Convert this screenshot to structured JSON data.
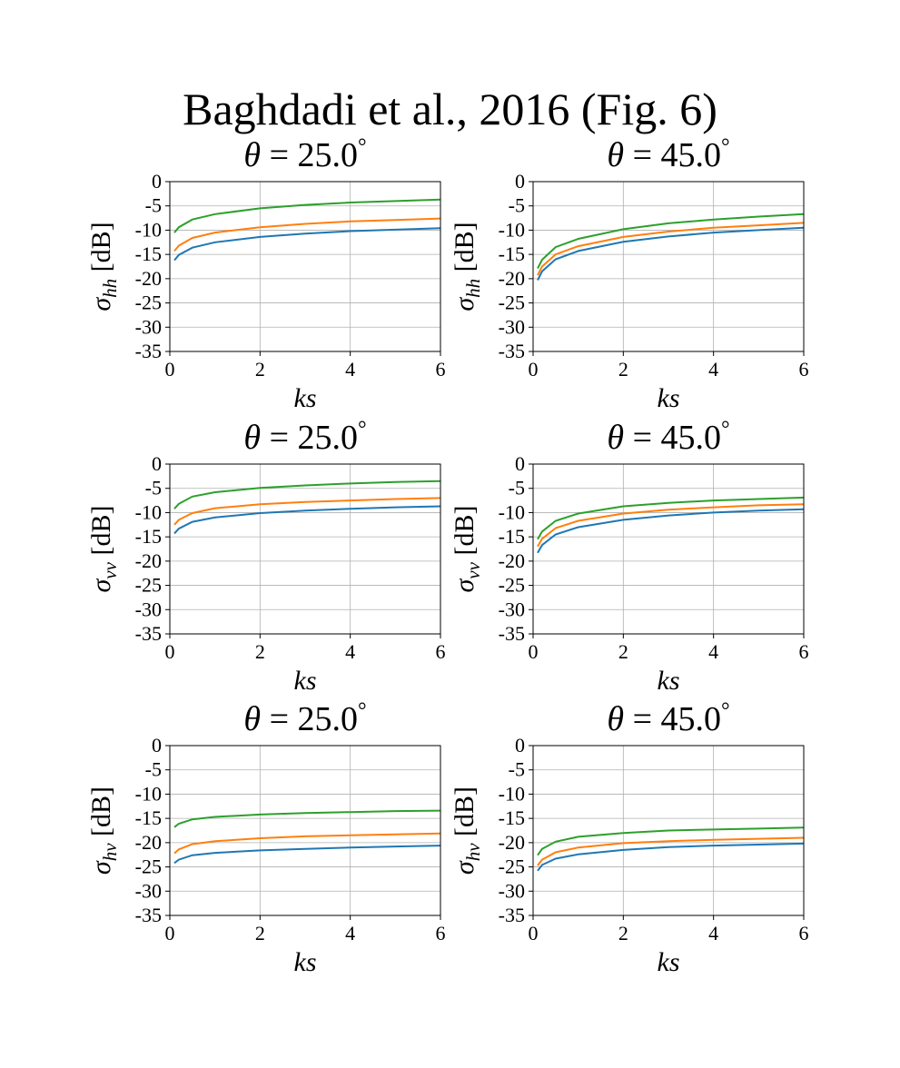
{
  "figure": {
    "title": "Baghdadi et al., 2016 (Fig. 6)"
  },
  "chart_data": [
    {
      "type": "line",
      "title": "θ = 25.0°",
      "xlabel": "ks",
      "ylabel": "σhh [dB]",
      "title_parts": {
        "var": "θ",
        "eq": " = ",
        "value": "25.0",
        "unit": "°"
      },
      "ylabel_parts": {
        "sym": "σ",
        "sub": "hh",
        "unit": " [dB]"
      },
      "xlim": [
        0,
        6
      ],
      "ylim": [
        -35,
        0
      ],
      "xticks": [
        "0",
        "2",
        "4",
        "6"
      ],
      "yticks": [
        "0",
        "-5",
        "-10",
        "-15",
        "-20",
        "-25",
        "-30",
        "-35"
      ],
      "grid": true,
      "x": [
        0.1,
        0.2,
        0.5,
        1,
        2,
        3,
        4,
        5,
        6
      ],
      "series": [
        {
          "color": "#1f77b4",
          "values": [
            -16.2,
            -15.1,
            -13.6,
            -12.5,
            -11.4,
            -10.7,
            -10.2,
            -9.9,
            -9.6
          ]
        },
        {
          "color": "#ff7f0e",
          "values": [
            -14.3,
            -13.2,
            -11.6,
            -10.5,
            -9.4,
            -8.7,
            -8.2,
            -7.9,
            -7.6
          ]
        },
        {
          "color": "#2ca02c",
          "values": [
            -10.5,
            -9.4,
            -7.8,
            -6.7,
            -5.5,
            -4.8,
            -4.3,
            -4.0,
            -3.7
          ]
        }
      ]
    },
    {
      "type": "line",
      "title": "θ = 45.0°",
      "xlabel": "ks",
      "ylabel": "σhh [dB]",
      "title_parts": {
        "var": "θ",
        "eq": " = ",
        "value": "45.0",
        "unit": "°"
      },
      "ylabel_parts": {
        "sym": "σ",
        "sub": "hh",
        "unit": " [dB]"
      },
      "xlim": [
        0,
        6
      ],
      "ylim": [
        -35,
        0
      ],
      "xticks": [
        "0",
        "2",
        "4",
        "6"
      ],
      "yticks": [
        "0",
        "-5",
        "-10",
        "-15",
        "-20",
        "-25",
        "-30",
        "-35"
      ],
      "grid": true,
      "x": [
        0.1,
        0.2,
        0.5,
        1,
        2,
        3,
        4,
        5,
        6
      ],
      "series": [
        {
          "color": "#1f77b4",
          "values": [
            -20.3,
            -18.5,
            -16.0,
            -14.3,
            -12.4,
            -11.3,
            -10.5,
            -10.0,
            -9.5
          ]
        },
        {
          "color": "#ff7f0e",
          "values": [
            -19.3,
            -17.5,
            -15.0,
            -13.3,
            -11.4,
            -10.3,
            -9.5,
            -9.0,
            -8.5
          ]
        },
        {
          "color": "#2ca02c",
          "values": [
            -17.9,
            -16.1,
            -13.5,
            -11.8,
            -9.8,
            -8.6,
            -7.8,
            -7.2,
            -6.7
          ]
        }
      ]
    },
    {
      "type": "line",
      "title": "θ = 25.0°",
      "xlabel": "ks",
      "ylabel": "σvv [dB]",
      "title_parts": {
        "var": "θ",
        "eq": " = ",
        "value": "25.0",
        "unit": "°"
      },
      "ylabel_parts": {
        "sym": "σ",
        "sub": "vv",
        "unit": " [dB]"
      },
      "xlim": [
        0,
        6
      ],
      "ylim": [
        -35,
        0
      ],
      "xticks": [
        "0",
        "2",
        "4",
        "6"
      ],
      "yticks": [
        "0",
        "-5",
        "-10",
        "-15",
        "-20",
        "-25",
        "-30",
        "-35"
      ],
      "grid": true,
      "x": [
        0.1,
        0.2,
        0.5,
        1,
        2,
        3,
        4,
        5,
        6
      ],
      "series": [
        {
          "color": "#1f77b4",
          "values": [
            -14.3,
            -13.3,
            -11.9,
            -11.0,
            -10.1,
            -9.6,
            -9.2,
            -8.9,
            -8.7
          ]
        },
        {
          "color": "#ff7f0e",
          "values": [
            -12.5,
            -11.5,
            -10.1,
            -9.1,
            -8.3,
            -7.8,
            -7.5,
            -7.2,
            -7.0
          ]
        },
        {
          "color": "#2ca02c",
          "values": [
            -9.2,
            -8.2,
            -6.7,
            -5.8,
            -4.9,
            -4.4,
            -4.0,
            -3.7,
            -3.5
          ]
        }
      ]
    },
    {
      "type": "line",
      "title": "θ = 45.0°",
      "xlabel": "ks",
      "ylabel": "σvv [dB]",
      "title_parts": {
        "var": "θ",
        "eq": " = ",
        "value": "45.0",
        "unit": "°"
      },
      "ylabel_parts": {
        "sym": "σ",
        "sub": "vv",
        "unit": " [dB]"
      },
      "xlim": [
        0,
        6
      ],
      "ylim": [
        -35,
        0
      ],
      "xticks": [
        "0",
        "2",
        "4",
        "6"
      ],
      "yticks": [
        "0",
        "-5",
        "-10",
        "-15",
        "-20",
        "-25",
        "-30",
        "-35"
      ],
      "grid": true,
      "x": [
        0.1,
        0.2,
        0.5,
        1,
        2,
        3,
        4,
        5,
        6
      ],
      "series": [
        {
          "color": "#1f77b4",
          "values": [
            -18.3,
            -16.7,
            -14.5,
            -13.0,
            -11.5,
            -10.6,
            -10.0,
            -9.6,
            -9.3
          ]
        },
        {
          "color": "#ff7f0e",
          "values": [
            -17.0,
            -15.4,
            -13.2,
            -11.7,
            -10.2,
            -9.4,
            -8.9,
            -8.5,
            -8.3
          ]
        },
        {
          "color": "#2ca02c",
          "values": [
            -15.5,
            -13.9,
            -11.7,
            -10.2,
            -8.7,
            -8.0,
            -7.5,
            -7.2,
            -6.9
          ]
        }
      ]
    },
    {
      "type": "line",
      "title": "θ = 25.0°",
      "xlabel": "ks",
      "ylabel": "σhv [dB]",
      "title_parts": {
        "var": "θ",
        "eq": " = ",
        "value": "25.0",
        "unit": "°"
      },
      "ylabel_parts": {
        "sym": "σ",
        "sub": "hv",
        "unit": " [dB]"
      },
      "xlim": [
        0,
        6
      ],
      "ylim": [
        -35,
        0
      ],
      "xticks": [
        "0",
        "2",
        "4",
        "6"
      ],
      "yticks": [
        "0",
        "-5",
        "-10",
        "-15",
        "-20",
        "-25",
        "-30",
        "-35"
      ],
      "grid": true,
      "x": [
        0.1,
        0.2,
        0.5,
        1,
        2,
        3,
        4,
        5,
        6
      ],
      "series": [
        {
          "color": "#1f77b4",
          "values": [
            -24.2,
            -23.5,
            -22.6,
            -22.1,
            -21.6,
            -21.3,
            -21.0,
            -20.8,
            -20.6
          ]
        },
        {
          "color": "#ff7f0e",
          "values": [
            -22.2,
            -21.4,
            -20.3,
            -19.7,
            -19.1,
            -18.7,
            -18.5,
            -18.3,
            -18.1
          ]
        },
        {
          "color": "#2ca02c",
          "values": [
            -16.8,
            -16.1,
            -15.2,
            -14.7,
            -14.2,
            -13.9,
            -13.7,
            -13.5,
            -13.4
          ]
        }
      ]
    },
    {
      "type": "line",
      "title": "θ = 45.0°",
      "xlabel": "ks",
      "ylabel": "σhv [dB]",
      "title_parts": {
        "var": "θ",
        "eq": " = ",
        "value": "45.0",
        "unit": "°"
      },
      "ylabel_parts": {
        "sym": "σ",
        "sub": "hv",
        "unit": " [dB]"
      },
      "xlim": [
        0,
        6
      ],
      "ylim": [
        -35,
        0
      ],
      "xticks": [
        "0",
        "2",
        "4",
        "6"
      ],
      "yticks": [
        "0",
        "-5",
        "-10",
        "-15",
        "-20",
        "-25",
        "-30",
        "-35"
      ],
      "grid": true,
      "x": [
        0.1,
        0.2,
        0.5,
        1,
        2,
        3,
        4,
        5,
        6
      ],
      "series": [
        {
          "color": "#1f77b4",
          "values": [
            -25.8,
            -24.6,
            -23.3,
            -22.4,
            -21.5,
            -20.9,
            -20.6,
            -20.4,
            -20.2
          ]
        },
        {
          "color": "#ff7f0e",
          "values": [
            -24.7,
            -23.5,
            -22.0,
            -21.0,
            -20.1,
            -19.7,
            -19.4,
            -19.2,
            -19.0
          ]
        },
        {
          "color": "#2ca02c",
          "values": [
            -22.6,
            -21.3,
            -19.8,
            -18.8,
            -18.0,
            -17.5,
            -17.3,
            -17.1,
            -16.9
          ]
        }
      ]
    }
  ]
}
